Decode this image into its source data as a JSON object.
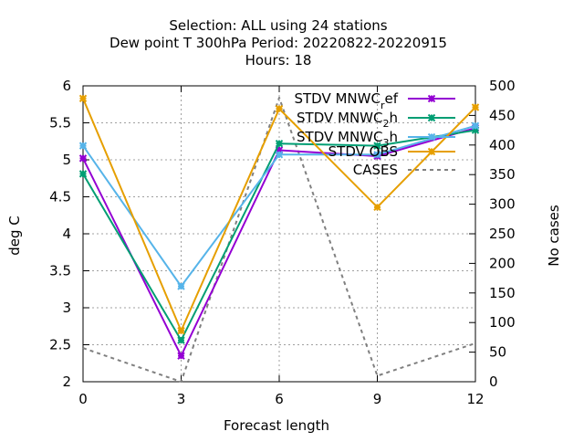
{
  "chart_data": {
    "type": "line",
    "title_lines": [
      "Selection: ALL using    24 stations",
      "Dew point T 300hPa   Period: 20220822-20220915",
      "Hours:  18"
    ],
    "xlabel": "Forecast length",
    "ylabel": "deg C",
    "y2label": "No cases",
    "x": [
      0,
      3,
      6,
      9,
      12
    ],
    "xlim": [
      0,
      12
    ],
    "ylim": [
      2,
      6
    ],
    "y2lim": [
      0,
      500
    ],
    "x_ticks": [
      "0",
      "3",
      "6",
      "9",
      "12"
    ],
    "y_ticks": [
      "2",
      "2.5",
      "3",
      "3.5",
      "4",
      "4.5",
      "5",
      "5.5",
      "6"
    ],
    "y2_ticks": [
      "0",
      "50",
      "100",
      "150",
      "200",
      "250",
      "300",
      "350",
      "400",
      "450",
      "500"
    ],
    "grid": true,
    "legend_position": "top-right",
    "series": [
      {
        "name": "STDV MNWC_ref",
        "legend_main": "STDV MNWC",
        "legend_sub": "r",
        "legend_tail": "ef",
        "color": "#9400d3",
        "axis": "y1",
        "values": [
          5.02,
          2.35,
          5.13,
          5.05,
          5.43
        ]
      },
      {
        "name": "STDV MNWC_2h",
        "legend_main": "STDV MNWC",
        "legend_sub": "2",
        "legend_tail": "h",
        "color": "#009e73",
        "axis": "y1",
        "values": [
          4.81,
          2.56,
          5.22,
          5.19,
          5.4
        ]
      },
      {
        "name": "STDV MNWC_3h",
        "legend_main": "STDV MNWC",
        "legend_sub": "3",
        "legend_tail": "h",
        "color": "#56b4e9",
        "axis": "y1",
        "values": [
          5.19,
          3.29,
          5.07,
          5.07,
          5.46
        ]
      },
      {
        "name": "STDV OBS",
        "legend_main": "STDV OBS",
        "legend_sub": "",
        "legend_tail": "",
        "color": "#e69f00",
        "axis": "y1",
        "values": [
          5.83,
          2.69,
          5.69,
          4.36,
          5.71
        ]
      },
      {
        "name": "CASES",
        "legend_main": "CASES",
        "legend_sub": "",
        "legend_tail": "",
        "color": "#808080",
        "axis": "y2",
        "dashed": true,
        "values": [
          57,
          0,
          480,
          10,
          65
        ]
      }
    ]
  }
}
